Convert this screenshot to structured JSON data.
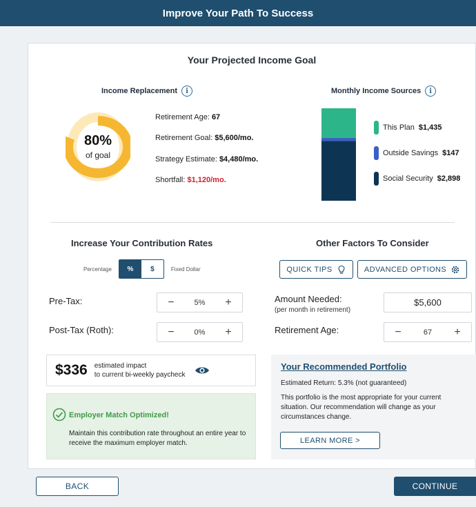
{
  "header": {
    "title": "Improve Your Path To Success"
  },
  "goal": {
    "title": "Your Projected Income Goal",
    "income_replacement_label": "Income Replacement",
    "percent_text": "80%",
    "percent_value": 80,
    "of_goal_label": "of goal",
    "stats": {
      "retirement_age_label": "Retirement Age:",
      "retirement_age_value": "67",
      "retirement_goal_label": "Retirement Goal:",
      "retirement_goal_value": "$5,600/mo.",
      "strategy_estimate_label": "Strategy Estimate:",
      "strategy_estimate_value": "$4,480/mo.",
      "shortfall_label": "Shortfall:",
      "shortfall_value": "$1,120/mo."
    },
    "monthly_sources_label": "Monthly Income Sources",
    "sources": [
      {
        "label": "This Plan",
        "value": "$1,435",
        "color": "#2db58a"
      },
      {
        "label": "Outside Savings",
        "value": "$147",
        "color": "#3b5fc5"
      },
      {
        "label": "Social Security",
        "value": "$2,898",
        "color": "#0d3553"
      }
    ]
  },
  "contribution": {
    "title": "Increase Your Contribution Rates",
    "toggle": {
      "left_label": "Percentage",
      "percent_symbol": "%",
      "dollar_symbol": "$",
      "right_label": "Fixed Dollar",
      "selected": "%"
    },
    "pre_tax_label": "Pre-Tax:",
    "pre_tax_value": "5%",
    "post_tax_label": "Post-Tax (Roth):",
    "post_tax_value": "0%",
    "minus_symbol": "−",
    "plus_symbol": "+"
  },
  "impact": {
    "amount": "$336",
    "line1": "estimated impact",
    "line2": "to current bi-weekly paycheck"
  },
  "employer_match": {
    "title": "Employer Match Optimized!",
    "body": "Maintain this contribution rate throughout an entire year to receive the maximum employer match."
  },
  "other_factors": {
    "title": "Other Factors To Consider",
    "quick_tips_label": "QUICK TIPS",
    "advanced_options_label": "ADVANCED OPTIONS",
    "amount_needed_label": "Amount Needed:",
    "amount_needed_sub": "(per month in retirement)",
    "amount_needed_value": "$5,600",
    "retirement_age_label": "Retirement Age:",
    "retirement_age_value": "67"
  },
  "portfolio": {
    "title": "Your Recommended Portfolio",
    "return_text": "Estimated Return: 5.3% (not guaranteed)",
    "body": "This portfolio is the most appropriate for your current situation. Our recommendation will change as your circumstances change.",
    "learn_more_label": "LEARN MORE  >"
  },
  "footer": {
    "back_label": "BACK",
    "continue_label": "CONTINUE"
  },
  "colors": {
    "primary": "#1f4e6e",
    "donut_fill": "#f5b731",
    "donut_track": "#fde9b8",
    "shortfall_red": "#d0202a",
    "match_green": "#3f9a4a"
  }
}
